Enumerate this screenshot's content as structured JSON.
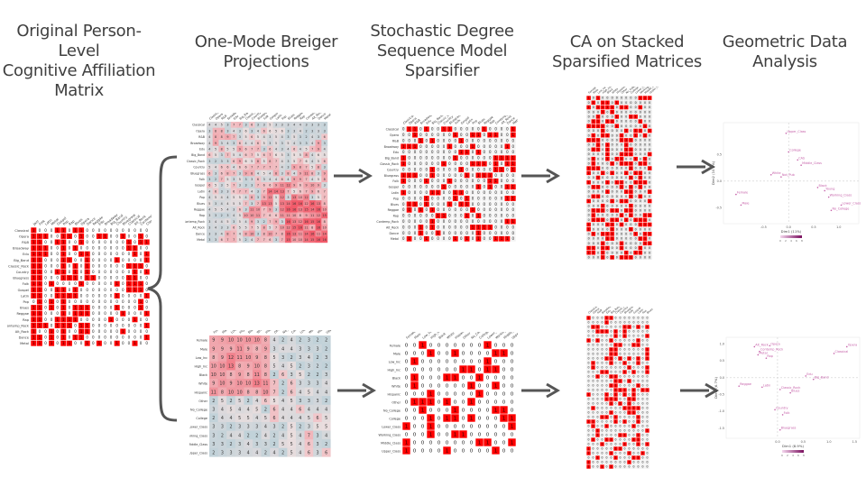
{
  "columns": [
    {
      "id": "original",
      "title": "Original Person-Level\nCognitive Affiliation\nMatrix"
    },
    {
      "id": "projections",
      "title": "One-Mode Breiger\nProjections"
    },
    {
      "id": "sparsifier",
      "title": "Stochastic Degree\nSequence Model\nSparsifier"
    },
    {
      "id": "ca",
      "title": "CA on Stacked\nSparsified Matrices"
    },
    {
      "id": "gda",
      "title": "Geometric Data\nAnalysis"
    }
  ],
  "colors": {
    "title_text": "#3f3f3f",
    "matrix_red": "#ff0000",
    "matrix_white": "#ffffff",
    "matrix_grey": "#d8d8d8",
    "heat_blue": "#a9cbd6",
    "heat_red": "#f25b6a",
    "arrow": "#555555",
    "plot_label": "#c55fa8"
  },
  "original_matrix": {
    "rows": [
      "Classical",
      "Opera",
      "R&B",
      "Broadway",
      "Edu",
      "Big_Band",
      "Classic_Rock",
      "Country",
      "Bluegrass",
      "Folk",
      "Gospel",
      "Latin",
      "Pop",
      "Blues",
      "Reggae",
      "Rap",
      "Contemp_Rock",
      "Alt_Rock",
      "Dance",
      "Metal"
    ],
    "cols": [
      "Jazz",
      "Folk",
      "Latin",
      "Metal",
      "Gospel",
      "Pop",
      "Rap",
      "Blues",
      "Opera",
      "Dance",
      "Reggae",
      "Edu",
      "Broadway",
      "Big_Band",
      "Country",
      "Bluegrass",
      "Classical",
      "Alt_Rock",
      "Contemp_Rock",
      "Classic_Rock"
    ]
  },
  "projection_top": {
    "labels": [
      "Classical",
      "Opera",
      "R&B",
      "Broadway",
      "Edu",
      "Big_Band",
      "Classic_Rock",
      "Country",
      "Bluegrass",
      "Folk",
      "Gospel",
      "Latin",
      "Pop",
      "Blues",
      "Reggae",
      "Rap",
      "Contemp_Rock",
      "Alt_Rock",
      "Dance",
      "Metal"
    ]
  },
  "projection_bottom": {
    "labels": [
      "Female",
      "Male",
      "Low_Inc",
      "High_Inc",
      "Black",
      "White",
      "Hispanic",
      "Other",
      "No_College",
      "College",
      "Lower_Class",
      "Working_Class",
      "Middle_Class",
      "Upper_Class"
    ]
  },
  "gda_top": {
    "xlabel": "Dim1 (11%)",
    "ylabel": "Dim2 (10.2%)",
    "points": [
      {
        "label": "Upper_Class",
        "x": -0.05,
        "y": 0.9
      },
      {
        "label": "College",
        "x": 0.0,
        "y": 0.55
      },
      {
        "label": "CAS",
        "x": 0.18,
        "y": 0.4
      },
      {
        "label": "Middle_Class",
        "x": 0.25,
        "y": 0.3
      },
      {
        "label": "White",
        "x": -0.35,
        "y": 0.12
      },
      {
        "label": "Not_Pub",
        "x": -0.15,
        "y": 0.08
      },
      {
        "label": "Black",
        "x": 0.58,
        "y": -0.12
      },
      {
        "label": "Young",
        "x": 0.72,
        "y": -0.18
      },
      {
        "label": "Working_Class",
        "x": 0.8,
        "y": -0.3
      },
      {
        "label": "Female",
        "x": -1.05,
        "y": -0.25
      },
      {
        "label": "Male",
        "x": -0.95,
        "y": -0.45
      },
      {
        "label": "Lower_Class",
        "x": 1.05,
        "y": -0.45
      },
      {
        "label": "No_College",
        "x": 0.85,
        "y": -0.55
      }
    ],
    "xticks": [
      "-0.5",
      "0.0",
      "0.5",
      "1.0"
    ],
    "yticks": [
      "0.5",
      "0.0",
      "-0.5"
    ],
    "colorbar_ticks": [
      "0",
      "2",
      "4",
      "6",
      "8"
    ]
  },
  "gda_bottom": {
    "xlabel": "Dim1 (8.9%)",
    "ylabel": "Dim2 (6.7%)",
    "points": [
      {
        "label": "Alt_Rock",
        "x": -0.45,
        "y": 0.92
      },
      {
        "label": "Opera",
        "x": -0.15,
        "y": 0.95
      },
      {
        "label": "Contemp_Rock",
        "x": -0.35,
        "y": 0.78
      },
      {
        "label": "Metal",
        "x": -0.38,
        "y": 0.68
      },
      {
        "label": "Rap",
        "x": -0.22,
        "y": 0.58
      },
      {
        "label": "Opera",
        "x": 1.35,
        "y": 0.92
      },
      {
        "label": "Classical",
        "x": 1.1,
        "y": 0.72
      },
      {
        "label": "Edu",
        "x": 0.55,
        "y": 0.05
      },
      {
        "label": "Big_Band",
        "x": 0.7,
        "y": -0.05
      },
      {
        "label": "Reggae",
        "x": -0.75,
        "y": -0.25
      },
      {
        "label": "Latin",
        "x": -0.3,
        "y": -0.28
      },
      {
        "label": "Classic_Rock",
        "x": 0.05,
        "y": -0.35
      },
      {
        "label": "Blues",
        "x": 0.25,
        "y": -0.45
      },
      {
        "label": "Country",
        "x": -0.05,
        "y": -0.95
      },
      {
        "label": "Folk",
        "x": 0.1,
        "y": -1.1
      },
      {
        "label": "Bluegrass",
        "x": 0.05,
        "y": -1.55
      }
    ],
    "xticks": [
      "0.0",
      "0.5",
      "1.0",
      "1.5"
    ],
    "yticks": [
      "1.0",
      "0.5",
      "0.0",
      "-0.5",
      "-1.0",
      "-1.5"
    ],
    "colorbar_ticks": [
      "0",
      "2",
      "4",
      "6",
      "8"
    ]
  }
}
